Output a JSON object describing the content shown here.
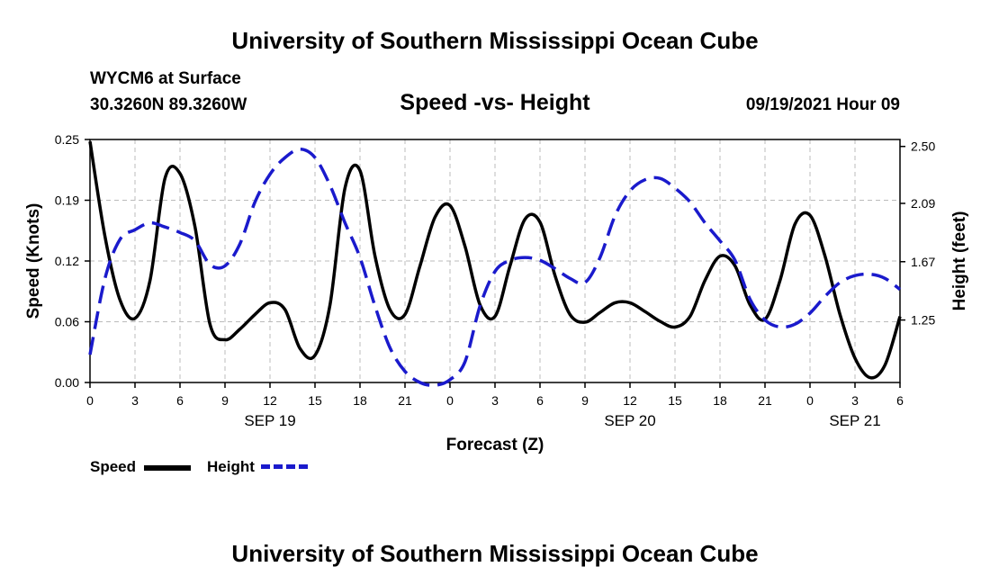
{
  "header": {
    "title_top": "University of Southern Mississippi Ocean Cube",
    "station": "WYCM6 at Surface",
    "coords": "30.3260N  89.3260W",
    "chart_title": "Speed -vs- Height",
    "datetime": "09/19/2021 Hour 09",
    "title_bottom": "University of Southern Mississippi Ocean Cube"
  },
  "legend": {
    "speed_label": "Speed",
    "height_label": "Height"
  },
  "colors": {
    "speed": "#000000",
    "height": "#1a1acc",
    "grid": "#bbbbbb"
  },
  "chart_data": {
    "type": "line",
    "title": "Speed -vs- Height",
    "xlabel": "Forecast (Z)",
    "ylabel_left": "Speed (Knots)",
    "ylabel_right": "Height (feet)",
    "x_range": [
      0,
      54
    ],
    "x_tick_labels": [
      "0",
      "3",
      "6",
      "9",
      "12",
      "15",
      "18",
      "21",
      "0",
      "3",
      "6",
      "9",
      "12",
      "15",
      "18",
      "21",
      "0",
      "3",
      "6"
    ],
    "date_labels": [
      {
        "hour": 12,
        "label": "SEP 19"
      },
      {
        "hour": 36,
        "label": "SEP 20"
      },
      {
        "hour": 51,
        "label": "SEP 21"
      }
    ],
    "y_left": {
      "range": [
        0,
        0.25
      ],
      "ticks": [
        "0.00",
        "0.06",
        "0.12",
        "0.19",
        "0.25"
      ]
    },
    "y_right": {
      "range": [
        0.8,
        2.55
      ],
      "ticks": [
        {
          "value": 1.25,
          "label": "1.25"
        },
        {
          "value": 1.67,
          "label": "1.67"
        },
        {
          "value": 2.09,
          "label": "2.09"
        },
        {
          "value": 2.5,
          "label": "2.50"
        }
      ]
    },
    "grid": true,
    "series": [
      {
        "name": "Speed",
        "axis": "left",
        "style": "solid",
        "points": [
          [
            0,
            0.248
          ],
          [
            1,
            0.15
          ],
          [
            2,
            0.085
          ],
          [
            3,
            0.066
          ],
          [
            4,
            0.105
          ],
          [
            5,
            0.21
          ],
          [
            6,
            0.215
          ],
          [
            7,
            0.16
          ],
          [
            8,
            0.06
          ],
          [
            9,
            0.044
          ],
          [
            10,
            0.055
          ],
          [
            11,
            0.07
          ],
          [
            12,
            0.082
          ],
          [
            13,
            0.075
          ],
          [
            14,
            0.035
          ],
          [
            15,
            0.028
          ],
          [
            16,
            0.08
          ],
          [
            17,
            0.2
          ],
          [
            18,
            0.218
          ],
          [
            19,
            0.13
          ],
          [
            20,
            0.075
          ],
          [
            21,
            0.07
          ],
          [
            22,
            0.12
          ],
          [
            23,
            0.17
          ],
          [
            24,
            0.182
          ],
          [
            25,
            0.14
          ],
          [
            26,
            0.08
          ],
          [
            27,
            0.068
          ],
          [
            28,
            0.12
          ],
          [
            29,
            0.168
          ],
          [
            30,
            0.165
          ],
          [
            31,
            0.11
          ],
          [
            32,
            0.07
          ],
          [
            33,
            0.062
          ],
          [
            34,
            0.072
          ],
          [
            35,
            0.082
          ],
          [
            36,
            0.082
          ],
          [
            37,
            0.073
          ],
          [
            38,
            0.063
          ],
          [
            39,
            0.057
          ],
          [
            40,
            0.068
          ],
          [
            41,
            0.105
          ],
          [
            42,
            0.13
          ],
          [
            43,
            0.12
          ],
          [
            44,
            0.08
          ],
          [
            45,
            0.065
          ],
          [
            46,
            0.105
          ],
          [
            47,
            0.163
          ],
          [
            48,
            0.172
          ],
          [
            49,
            0.13
          ],
          [
            50,
            0.07
          ],
          [
            51,
            0.025
          ],
          [
            52,
            0.005
          ],
          [
            53,
            0.018
          ],
          [
            54,
            0.068
          ]
        ]
      },
      {
        "name": "Height",
        "axis": "right",
        "style": "dashed",
        "points": [
          [
            0,
            1.0
          ],
          [
            1,
            1.55
          ],
          [
            2,
            1.83
          ],
          [
            3,
            1.9
          ],
          [
            4,
            1.95
          ],
          [
            5,
            1.92
          ],
          [
            6,
            1.88
          ],
          [
            7,
            1.82
          ],
          [
            8,
            1.65
          ],
          [
            9,
            1.64
          ],
          [
            10,
            1.8
          ],
          [
            11,
            2.1
          ],
          [
            12,
            2.3
          ],
          [
            13,
            2.42
          ],
          [
            14,
            2.48
          ],
          [
            15,
            2.42
          ],
          [
            16,
            2.22
          ],
          [
            17,
            1.95
          ],
          [
            18,
            1.7
          ],
          [
            19,
            1.35
          ],
          [
            20,
            1.05
          ],
          [
            21,
            0.88
          ],
          [
            22,
            0.8
          ],
          [
            23,
            0.78
          ],
          [
            24,
            0.82
          ],
          [
            25,
            0.95
          ],
          [
            26,
            1.35
          ],
          [
            27,
            1.6
          ],
          [
            28,
            1.68
          ],
          [
            29,
            1.7
          ],
          [
            30,
            1.68
          ],
          [
            31,
            1.62
          ],
          [
            32,
            1.55
          ],
          [
            33,
            1.52
          ],
          [
            34,
            1.7
          ],
          [
            35,
            2.0
          ],
          [
            36,
            2.18
          ],
          [
            37,
            2.26
          ],
          [
            38,
            2.27
          ],
          [
            39,
            2.2
          ],
          [
            40,
            2.1
          ],
          [
            41,
            1.95
          ],
          [
            42,
            1.82
          ],
          [
            43,
            1.68
          ],
          [
            44,
            1.4
          ],
          [
            45,
            1.25
          ],
          [
            46,
            1.2
          ],
          [
            47,
            1.22
          ],
          [
            48,
            1.3
          ],
          [
            49,
            1.42
          ],
          [
            50,
            1.52
          ],
          [
            51,
            1.57
          ],
          [
            52,
            1.58
          ],
          [
            53,
            1.55
          ],
          [
            54,
            1.47
          ]
        ]
      }
    ]
  }
}
